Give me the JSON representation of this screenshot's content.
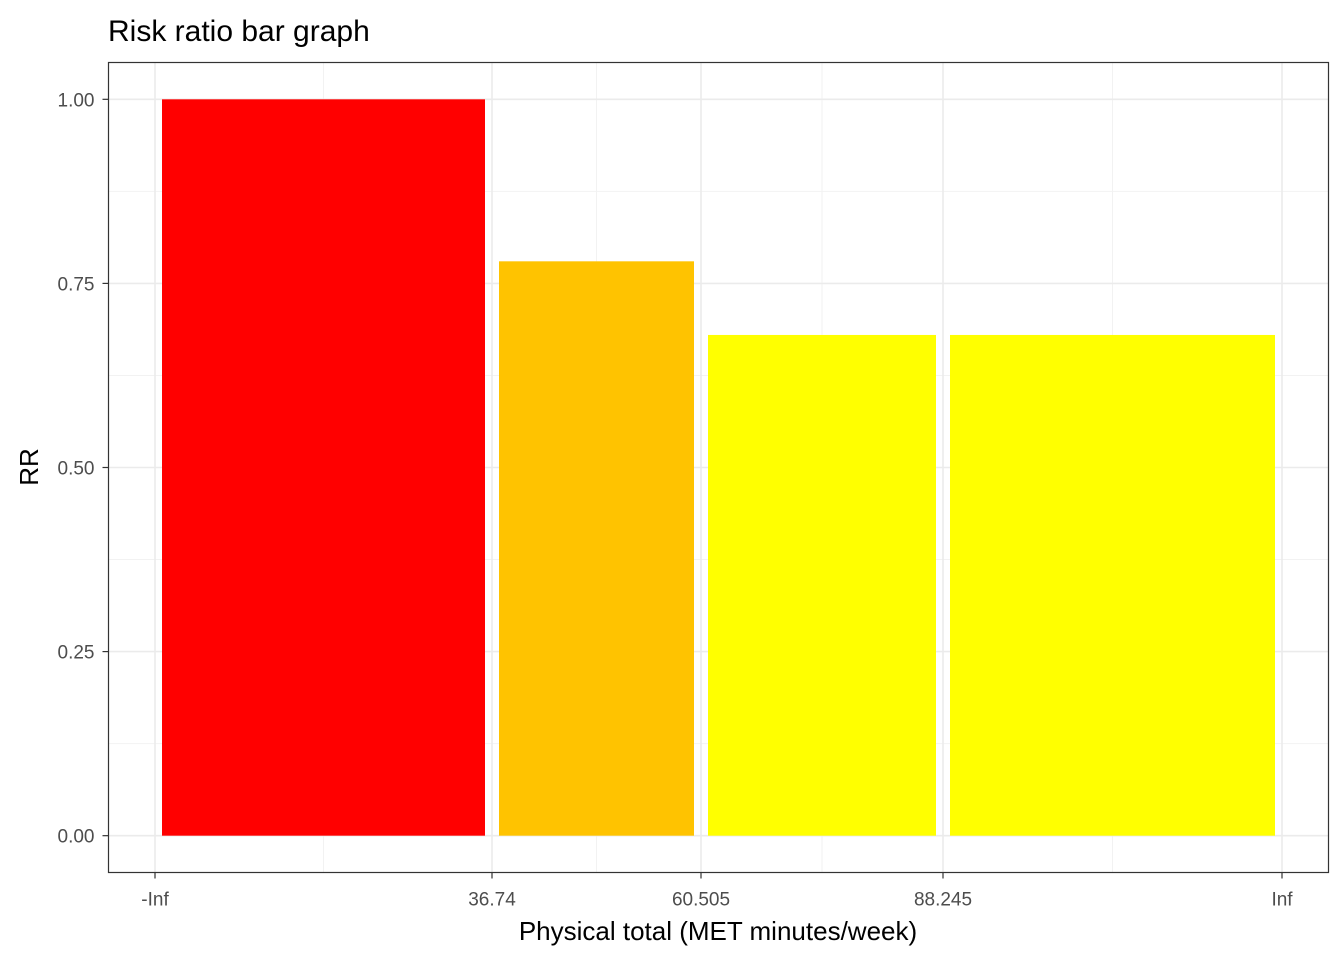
{
  "chart_data": {
    "type": "bar",
    "title": "Risk ratio bar graph",
    "xlabel": "Physical total (MET minutes/week)",
    "ylabel": "RR",
    "x_tick_labels": [
      "-Inf",
      "36.74",
      "60.505",
      "88.245",
      "Inf"
    ],
    "y_tick_labels": [
      "0.00",
      "0.25",
      "0.50",
      "0.75",
      "1.00"
    ],
    "y_ticks": [
      0,
      0.25,
      0.5,
      0.75,
      1.0
    ],
    "ylim": [
      -0.05,
      1.05
    ],
    "grid": true,
    "bars": [
      {
        "from": "-Inf",
        "to": "36.74",
        "value": 1.0,
        "color": "#FF0000"
      },
      {
        "from": "36.74",
        "to": "60.505",
        "value": 0.78,
        "color": "#FFC300"
      },
      {
        "from": "60.505",
        "to": "88.245",
        "value": 0.68,
        "color": "#FFFF00"
      },
      {
        "from": "88.245",
        "to": "Inf",
        "value": 0.68,
        "color": "#FFFF00"
      }
    ]
  }
}
